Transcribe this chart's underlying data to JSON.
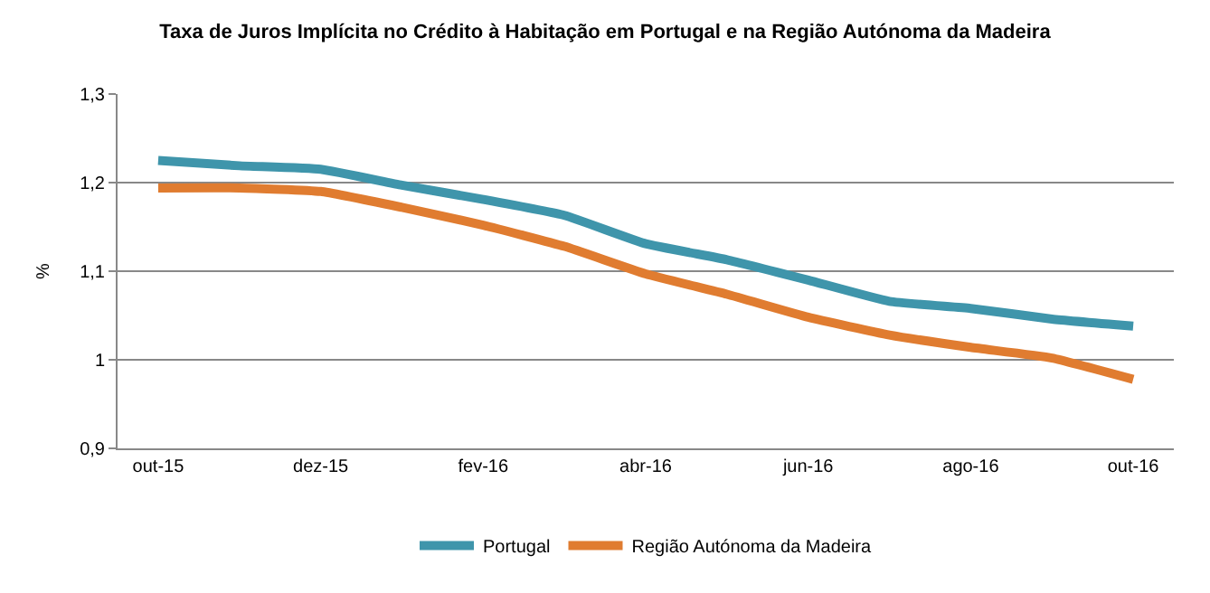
{
  "chart_data": {
    "type": "line",
    "title": "Taxa de Juros Implícita no Crédito à Habitação em Portugal e na Região Autónoma da Madeira",
    "ylabel": "%",
    "categories": [
      "out-15",
      null,
      "dez-15",
      null,
      "fev-16",
      null,
      "abr-16",
      null,
      "jun-16",
      null,
      "ago-16",
      null,
      "out-16"
    ],
    "series": [
      {
        "name": "Portugal",
        "color": "#3f95ab",
        "values": [
          1.225,
          1.219,
          1.215,
          1.197,
          1.181,
          1.163,
          1.131,
          1.113,
          1.09,
          1.066,
          1.058,
          1.046,
          1.038
        ]
      },
      {
        "name": "Região Autónoma da Madeira",
        "color": "#e07c30",
        "values": [
          1.194,
          1.194,
          1.19,
          1.172,
          1.152,
          1.128,
          1.097,
          1.074,
          1.048,
          1.028,
          1.014,
          1.002,
          0.978
        ]
      }
    ],
    "ylim": [
      0.9,
      1.3
    ],
    "yticks": [
      {
        "value": 0.9,
        "label": "0,9"
      },
      1,
      {
        "value": 1.1,
        "label": "1,1"
      },
      {
        "value": 1.2,
        "label": "1,2"
      },
      {
        "value": 1.3,
        "label": "1,3"
      }
    ],
    "grid": "y",
    "legend": "bottom",
    "marker": "none",
    "line_style": "solid"
  }
}
